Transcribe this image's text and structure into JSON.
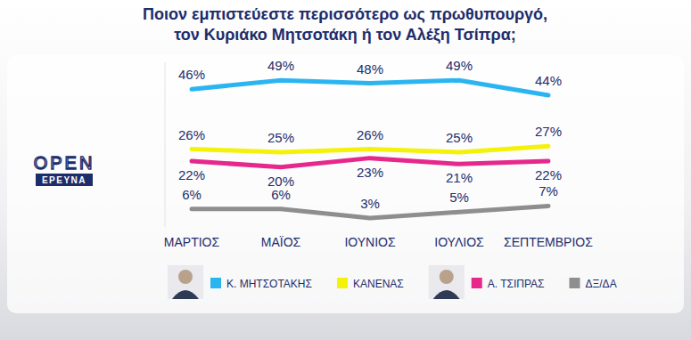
{
  "chart_data": {
    "type": "line",
    "title": "Ποιον εμπιστεύεστε περισσότερο ως πρωθυπουργό,\nτον Κυριάκο Μητσοτάκη ή τον Αλέξη Τσίπρα;",
    "categories": [
      "ΜΑΡΤΙΟΣ",
      "ΜΑΪΟΣ",
      "ΙΟΥΝΙΟΣ",
      "ΙΟΥΛΙΟΣ",
      "ΣΕΠΤΕΜΒΡΙΟΣ"
    ],
    "series": [
      {
        "name": "Κ. ΜΗΤΣΟΤΑΚΗΣ",
        "color": "#2bb5f0",
        "values": [
          46,
          49,
          48,
          49,
          44
        ],
        "value_labels": [
          "46%",
          "49%",
          "48%",
          "49%",
          "44%"
        ]
      },
      {
        "name": "ΚΑΝΕΝΑΣ",
        "color": "#f4f20a",
        "values": [
          26,
          25,
          26,
          25,
          27
        ],
        "value_labels": [
          "26%",
          "25%",
          "26%",
          "25%",
          "27%"
        ]
      },
      {
        "name": "Α. ΤΣΙΠΡΑΣ",
        "color": "#e6288c",
        "values": [
          22,
          20,
          23,
          21,
          22
        ],
        "value_labels": [
          "22%",
          "20%",
          "23%",
          "21%",
          "22%"
        ]
      },
      {
        "name": "ΔΞ/ΔΑ",
        "color": "#8e8e8e",
        "values": [
          6,
          6,
          3,
          5,
          7
        ],
        "value_labels": [
          "6%",
          "6%",
          "3%",
          "5%",
          "7%"
        ]
      }
    ],
    "ylim": [
      0,
      55
    ],
    "data_labels": true,
    "tick_labels": "x",
    "legend": "bottom"
  },
  "logo": {
    "text": "OPEN",
    "subtext": "ΕΡΕΥΝΑ"
  }
}
